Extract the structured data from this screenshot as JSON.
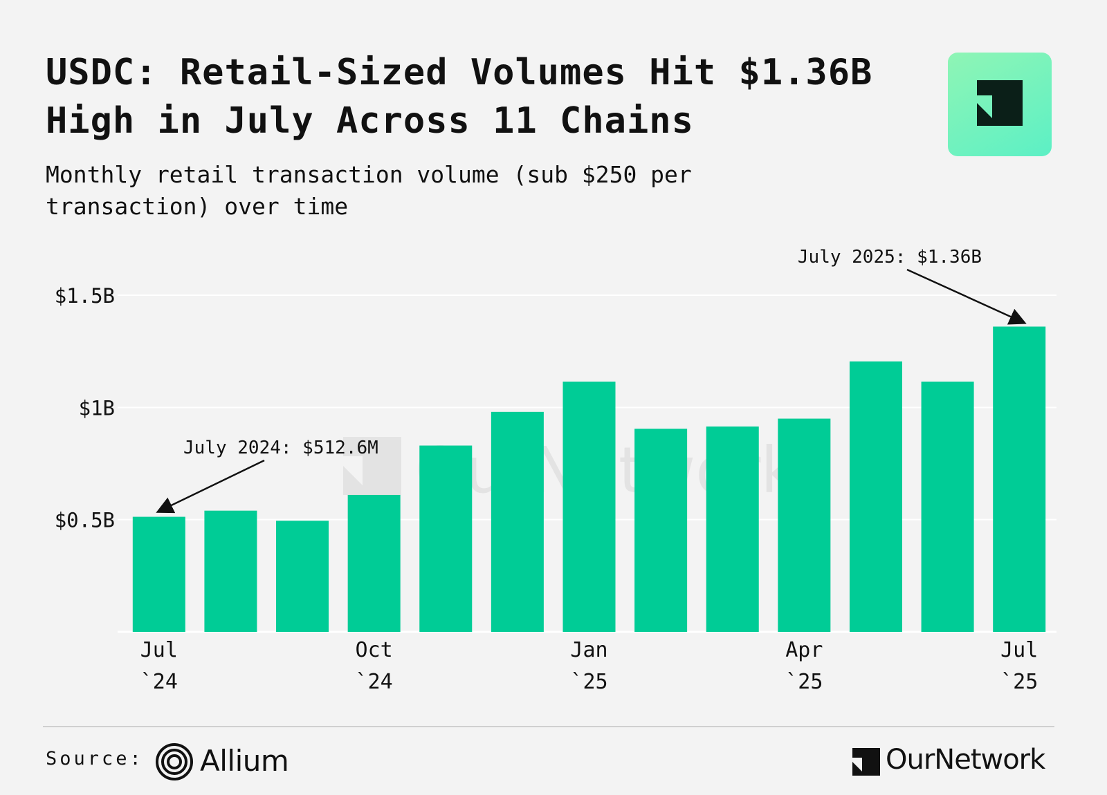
{
  "title": "USDC: Retail-Sized Volumes Hit $1.36B High in July Across 11 Chains",
  "subtitle": "Monthly retail transaction volume (sub $250 per transaction) over time",
  "watermark": "OurNetwork",
  "source": {
    "label": "Source:",
    "provider": "Allium"
  },
  "brand": {
    "name": "OurNetwork"
  },
  "colors": {
    "bar": "#00cc96",
    "background": "#f3f3f3",
    "grid": "#ffffff",
    "logo_tile": "#7ff3bf"
  },
  "chart_data": {
    "type": "bar",
    "title": "USDC: Retail-Sized Volumes Hit $1.36B High in July Across 11 Chains",
    "subtitle": "Monthly retail transaction volume (sub $250 per transaction) over time",
    "categories": [
      "2024-07",
      "2024-08",
      "2024-09",
      "2024-10",
      "2024-11",
      "2024-12",
      "2025-01",
      "2025-02",
      "2025-03",
      "2025-04",
      "2025-05",
      "2025-06",
      "2025-07"
    ],
    "values": [
      0.5126,
      0.54,
      0.495,
      0.61,
      0.83,
      0.98,
      1.115,
      0.905,
      0.915,
      0.95,
      1.205,
      1.115,
      1.36
    ],
    "unit": "B USD",
    "xlabel": "",
    "ylabel": "",
    "ylim": [
      0,
      1.5
    ],
    "yticks": [
      {
        "value": 0.5,
        "label": "$0.5B"
      },
      {
        "value": 1,
        "label": "$1B"
      },
      {
        "value": 1.5,
        "label": "$1.5B"
      }
    ],
    "xticks": [
      {
        "index": 0,
        "line1": "Jul",
        "line2": "`24"
      },
      {
        "index": 3,
        "line1": "Oct",
        "line2": "`24"
      },
      {
        "index": 6,
        "line1": "Jan",
        "line2": "`25"
      },
      {
        "index": 9,
        "line1": "Apr",
        "line2": "`25"
      },
      {
        "index": 12,
        "line1": "Jul",
        "line2": "`25"
      }
    ],
    "annotations": [
      {
        "index": 0,
        "text": "July 2024: $512.6M"
      },
      {
        "index": 12,
        "text": "July 2025: $1.36B"
      }
    ],
    "grid": true,
    "legend": "none"
  }
}
